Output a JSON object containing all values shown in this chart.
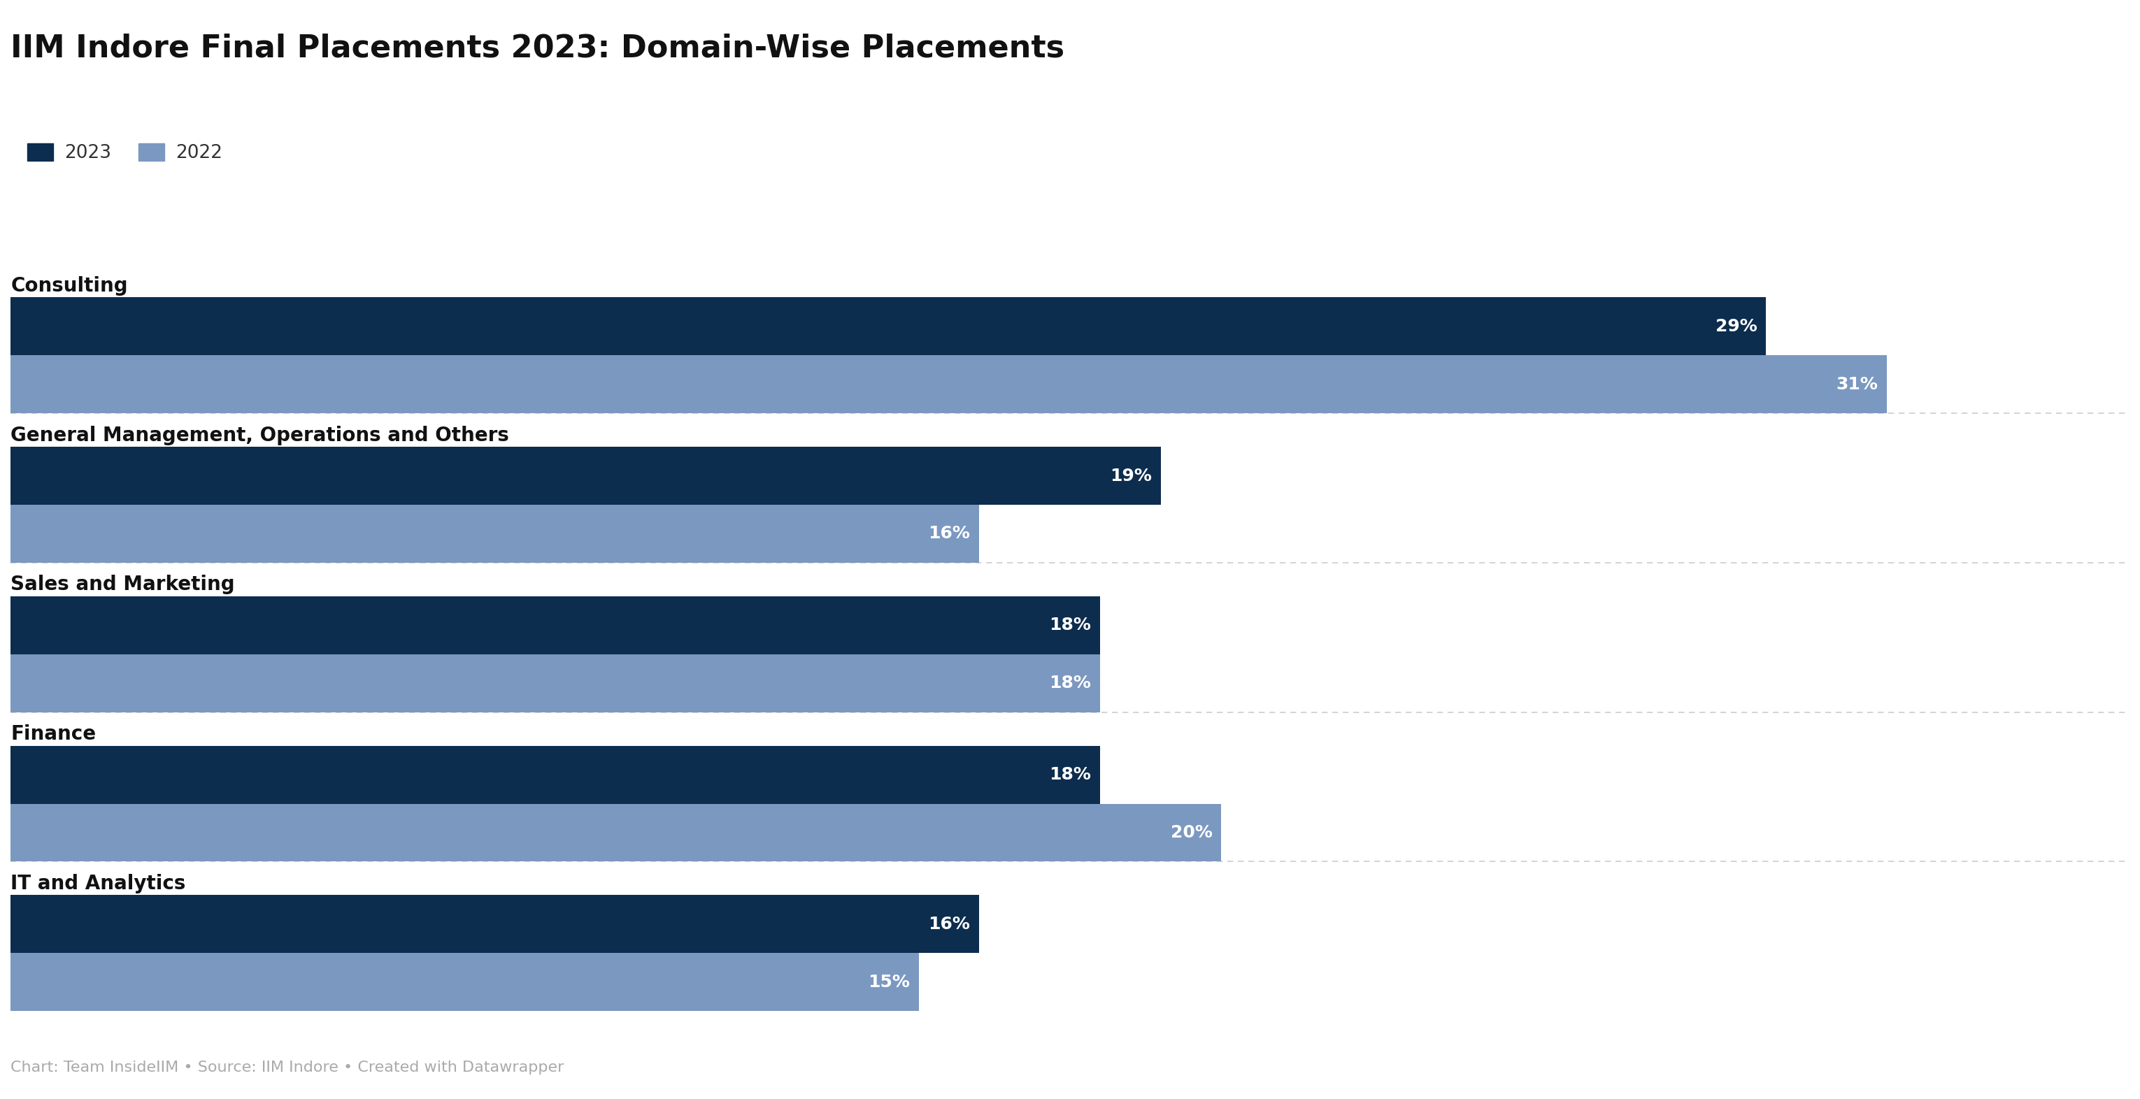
{
  "title": "IIM Indore Final Placements 2023: Domain-Wise Placements",
  "categories": [
    "Consulting",
    "General Management, Operations and Others",
    "Sales and Marketing",
    "Finance",
    "IT and Analytics"
  ],
  "values_2023": [
    29,
    19,
    18,
    18,
    16
  ],
  "values_2022": [
    31,
    16,
    18,
    20,
    15
  ],
  "color_2023": "#0d2d4e",
  "color_2022": "#7b98c0",
  "background_color": "#ffffff",
  "label_2023": "2023",
  "label_2022": "2022",
  "title_fontsize": 32,
  "category_fontsize": 20,
  "bar_label_fontsize": 18,
  "legend_fontsize": 19,
  "footer_text": "Chart: Team InsideIIM • Source: IIM Indore • Created with Datawrapper",
  "footer_fontsize": 16,
  "footer_color": "#aaaaaa",
  "xlim": [
    0,
    35
  ]
}
